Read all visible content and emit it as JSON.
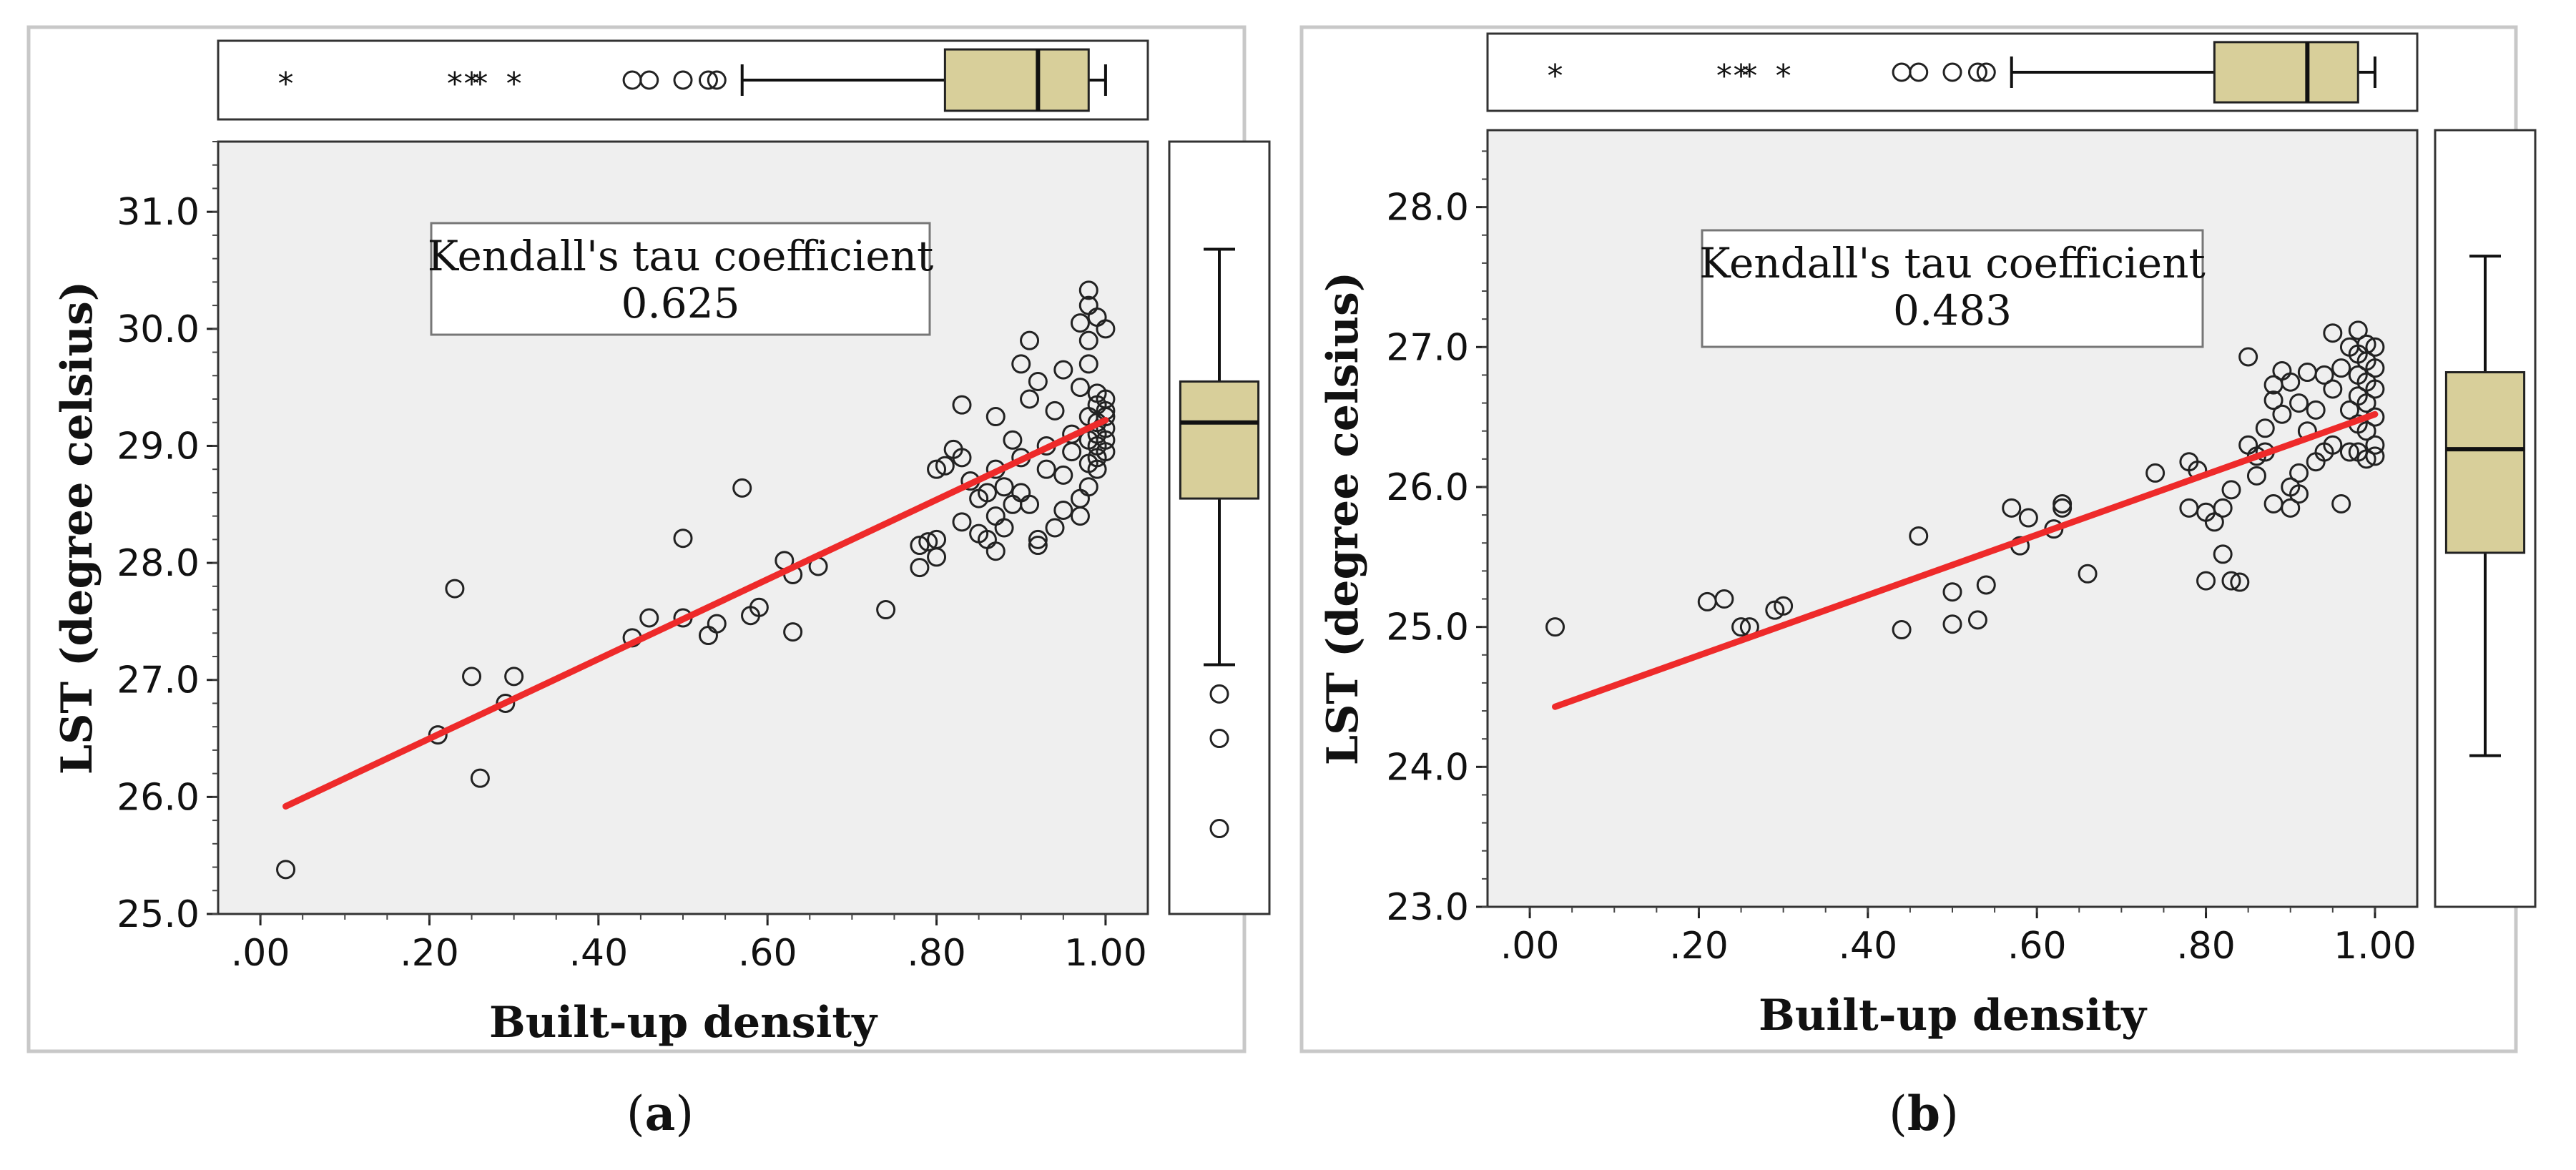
{
  "colors": {
    "plot_bg": "#efefef",
    "box_fill": "#d8cf9a",
    "fit_line": "#ee2a2a",
    "frame": "#c8c8c8"
  },
  "chart_data": [
    {
      "type": "scatter",
      "panel": "a",
      "caption_open": "(",
      "caption_letter": "a",
      "caption_close": ")",
      "xlabel": "Built-up density",
      "ylabel": "LST (degree celsius)",
      "xlim": [
        -0.05,
        1.05
      ],
      "ylim": [
        25.0,
        31.6
      ],
      "xticks": [
        0,
        0.2,
        0.4,
        0.6,
        0.8,
        1.0
      ],
      "xticklabels": [
        ".00",
        ".20",
        ".40",
        ".60",
        ".80",
        "1.00"
      ],
      "yticks": [
        25,
        26,
        27,
        28,
        29,
        30,
        31
      ],
      "yticklabels": [
        "25.0",
        "26.0",
        "27.0",
        "28.0",
        "29.0",
        "30.0",
        "31.0"
      ],
      "annotation_title": "Kendall's tau coefficient",
      "annotation_value": "0.625",
      "fit_line": {
        "x": [
          0.03,
          1.0
        ],
        "y": [
          25.92,
          29.22
        ]
      },
      "points": [
        [
          0.03,
          25.38
        ],
        [
          0.21,
          26.53
        ],
        [
          0.23,
          27.78
        ],
        [
          0.25,
          27.03
        ],
        [
          0.26,
          26.16
        ],
        [
          0.29,
          26.8
        ],
        [
          0.3,
          27.03
        ],
        [
          0.44,
          27.36
        ],
        [
          0.46,
          27.53
        ],
        [
          0.5,
          28.21
        ],
        [
          0.5,
          27.53
        ],
        [
          0.53,
          27.38
        ],
        [
          0.54,
          27.48
        ],
        [
          0.57,
          28.64
        ],
        [
          0.58,
          27.55
        ],
        [
          0.59,
          27.62
        ],
        [
          0.62,
          28.02
        ],
        [
          0.63,
          27.9
        ],
        [
          0.63,
          27.41
        ],
        [
          0.66,
          27.97
        ],
        [
          0.74,
          27.6
        ],
        [
          0.78,
          27.96
        ],
        [
          0.78,
          28.15
        ],
        [
          0.79,
          28.18
        ],
        [
          0.8,
          28.8
        ],
        [
          0.8,
          28.2
        ],
        [
          0.8,
          28.05
        ],
        [
          0.81,
          28.83
        ],
        [
          0.82,
          28.97
        ],
        [
          0.83,
          29.35
        ],
        [
          0.83,
          28.9
        ],
        [
          0.83,
          28.35
        ],
        [
          0.84,
          28.7
        ],
        [
          0.85,
          28.55
        ],
        [
          0.85,
          28.25
        ],
        [
          0.86,
          28.6
        ],
        [
          0.86,
          28.2
        ],
        [
          0.87,
          29.25
        ],
        [
          0.87,
          28.8
        ],
        [
          0.87,
          28.4
        ],
        [
          0.87,
          28.1
        ],
        [
          0.88,
          28.65
        ],
        [
          0.88,
          28.3
        ],
        [
          0.89,
          29.05
        ],
        [
          0.89,
          28.5
        ],
        [
          0.9,
          29.7
        ],
        [
          0.9,
          28.9
        ],
        [
          0.9,
          28.6
        ],
        [
          0.91,
          29.9
        ],
        [
          0.91,
          29.4
        ],
        [
          0.91,
          28.5
        ],
        [
          0.92,
          29.55
        ],
        [
          0.92,
          28.2
        ],
        [
          0.92,
          28.15
        ],
        [
          0.93,
          29.0
        ],
        [
          0.93,
          28.8
        ],
        [
          0.94,
          29.3
        ],
        [
          0.94,
          28.3
        ],
        [
          0.95,
          29.65
        ],
        [
          0.95,
          28.75
        ],
        [
          0.95,
          28.45
        ],
        [
          0.96,
          29.1
        ],
        [
          0.96,
          28.95
        ],
        [
          0.97,
          30.05
        ],
        [
          0.97,
          29.5
        ],
        [
          0.97,
          28.55
        ],
        [
          0.97,
          28.4
        ],
        [
          0.98,
          30.33
        ],
        [
          0.98,
          30.2
        ],
        [
          0.98,
          29.9
        ],
        [
          0.98,
          29.7
        ],
        [
          0.98,
          29.25
        ],
        [
          0.98,
          29.05
        ],
        [
          0.98,
          28.85
        ],
        [
          0.98,
          28.65
        ],
        [
          0.99,
          30.1
        ],
        [
          0.99,
          29.45
        ],
        [
          0.99,
          29.35
        ],
        [
          0.99,
          29.2
        ],
        [
          0.99,
          29.1
        ],
        [
          0.99,
          29.0
        ],
        [
          0.99,
          28.9
        ],
        [
          0.99,
          28.8
        ],
        [
          1.0,
          30.0
        ],
        [
          1.0,
          29.4
        ],
        [
          1.0,
          29.3
        ],
        [
          1.0,
          29.25
        ],
        [
          1.0,
          29.15
        ],
        [
          1.0,
          29.05
        ],
        [
          1.0,
          28.95
        ]
      ],
      "x_box": {
        "q1": 0.81,
        "median": 0.92,
        "q3": 0.98,
        "whisker_low": 0.57,
        "whisker_high": 1.0,
        "outliers": [
          0.44,
          0.46,
          0.5,
          0.53,
          0.54
        ],
        "extremes": [
          0.03,
          0.23,
          0.25,
          0.26,
          0.3
        ]
      },
      "y_box": {
        "q1": 28.55,
        "median": 29.2,
        "q3": 29.55,
        "whisker_low": 27.13,
        "whisker_high": 30.68,
        "outliers": [
          26.88,
          26.5,
          25.73
        ],
        "extremes": []
      }
    },
    {
      "type": "scatter",
      "panel": "b",
      "caption_open": "(",
      "caption_letter": "b",
      "caption_close": ")",
      "xlabel": "Built-up density",
      "ylabel": "LST (degree celsius)",
      "xlim": [
        -0.05,
        1.05
      ],
      "ylim": [
        23.0,
        28.55
      ],
      "xticks": [
        0,
        0.2,
        0.4,
        0.6,
        0.8,
        1.0
      ],
      "xticklabels": [
        ".00",
        ".20",
        ".40",
        ".60",
        ".80",
        "1.00"
      ],
      "yticks": [
        23,
        24,
        25,
        26,
        27,
        28
      ],
      "yticklabels": [
        "23.0",
        "24.0",
        "25.0",
        "26.0",
        "27.0",
        "28.0"
      ],
      "annotation_title": "Kendall's tau coefficient",
      "annotation_value": "0.483",
      "fit_line": {
        "x": [
          0.03,
          1.0
        ],
        "y": [
          24.43,
          26.52
        ]
      },
      "points": [
        [
          0.03,
          25.0
        ],
        [
          0.21,
          25.18
        ],
        [
          0.23,
          25.2
        ],
        [
          0.25,
          25.0
        ],
        [
          0.26,
          25.0
        ],
        [
          0.29,
          25.12
        ],
        [
          0.3,
          25.15
        ],
        [
          0.44,
          24.98
        ],
        [
          0.46,
          25.65
        ],
        [
          0.5,
          25.25
        ],
        [
          0.5,
          25.02
        ],
        [
          0.53,
          25.05
        ],
        [
          0.54,
          25.3
        ],
        [
          0.57,
          25.85
        ],
        [
          0.58,
          25.58
        ],
        [
          0.59,
          25.78
        ],
        [
          0.62,
          25.7
        ],
        [
          0.63,
          25.88
        ],
        [
          0.63,
          25.85
        ],
        [
          0.66,
          25.38
        ],
        [
          0.74,
          26.1
        ],
        [
          0.78,
          26.18
        ],
        [
          0.78,
          25.85
        ],
        [
          0.79,
          26.12
        ],
        [
          0.8,
          25.82
        ],
        [
          0.8,
          25.33
        ],
        [
          0.81,
          25.75
        ],
        [
          0.82,
          25.85
        ],
        [
          0.82,
          25.52
        ],
        [
          0.83,
          25.98
        ],
        [
          0.83,
          25.33
        ],
        [
          0.84,
          25.32
        ],
        [
          0.85,
          26.93
        ],
        [
          0.85,
          26.3
        ],
        [
          0.86,
          26.22
        ],
        [
          0.86,
          26.08
        ],
        [
          0.87,
          26.42
        ],
        [
          0.87,
          26.25
        ],
        [
          0.88,
          26.73
        ],
        [
          0.88,
          26.62
        ],
        [
          0.88,
          25.88
        ],
        [
          0.89,
          26.83
        ],
        [
          0.89,
          26.52
        ],
        [
          0.9,
          26.75
        ],
        [
          0.9,
          26.0
        ],
        [
          0.9,
          25.85
        ],
        [
          0.91,
          26.6
        ],
        [
          0.91,
          26.1
        ],
        [
          0.91,
          25.95
        ],
        [
          0.92,
          26.82
        ],
        [
          0.92,
          26.4
        ],
        [
          0.93,
          26.18
        ],
        [
          0.93,
          26.55
        ],
        [
          0.94,
          26.8
        ],
        [
          0.94,
          26.25
        ],
        [
          0.95,
          27.1
        ],
        [
          0.95,
          26.7
        ],
        [
          0.95,
          26.3
        ],
        [
          0.96,
          26.85
        ],
        [
          0.96,
          25.88
        ],
        [
          0.97,
          27.0
        ],
        [
          0.97,
          26.55
        ],
        [
          0.97,
          26.25
        ],
        [
          0.98,
          27.12
        ],
        [
          0.98,
          26.95
        ],
        [
          0.98,
          26.8
        ],
        [
          0.98,
          26.65
        ],
        [
          0.98,
          26.45
        ],
        [
          0.98,
          26.25
        ],
        [
          0.99,
          27.02
        ],
        [
          0.99,
          26.9
        ],
        [
          0.99,
          26.75
        ],
        [
          0.99,
          26.6
        ],
        [
          0.99,
          26.4
        ],
        [
          0.99,
          26.2
        ],
        [
          1.0,
          27.0
        ],
        [
          1.0,
          26.85
        ],
        [
          1.0,
          26.7
        ],
        [
          1.0,
          26.5
        ],
        [
          1.0,
          26.3
        ],
        [
          1.0,
          26.22
        ]
      ],
      "x_box": {
        "q1": 0.81,
        "median": 0.92,
        "q3": 0.98,
        "whisker_low": 0.57,
        "whisker_high": 1.0,
        "outliers": [
          0.44,
          0.46,
          0.5,
          0.53,
          0.54
        ],
        "extremes": [
          0.03,
          0.23,
          0.25,
          0.26,
          0.3
        ]
      },
      "y_box": {
        "q1": 25.53,
        "median": 26.27,
        "q3": 26.82,
        "whisker_low": 24.08,
        "whisker_high": 27.65,
        "outliers": [],
        "extremes": []
      }
    }
  ]
}
